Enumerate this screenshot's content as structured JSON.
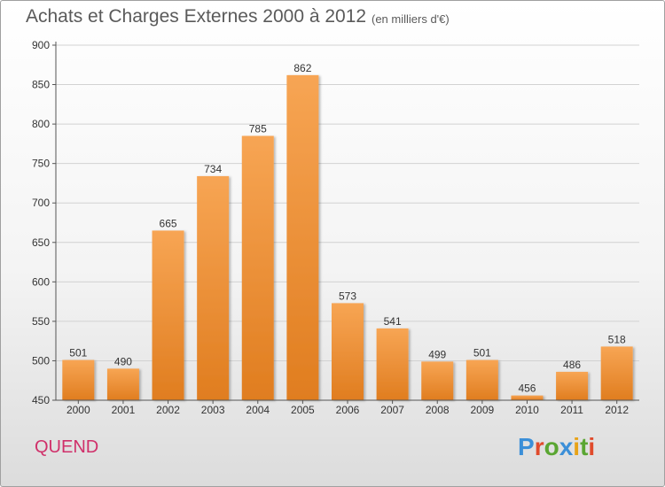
{
  "chart_data": {
    "type": "bar",
    "title": "Achats et Charges Externes 2000 à 2012",
    "subtitle": "(en milliers d'€)",
    "categories": [
      "2000",
      "2001",
      "2002",
      "2003",
      "2004",
      "2005",
      "2006",
      "2007",
      "2008",
      "2009",
      "2010",
      "2011",
      "2012"
    ],
    "values": [
      501,
      490,
      665,
      734,
      785,
      862,
      573,
      541,
      499,
      501,
      456,
      486,
      518
    ],
    "ylim": [
      450,
      900
    ],
    "yticks": [
      450,
      500,
      550,
      600,
      650,
      700,
      750,
      800,
      850,
      900
    ],
    "grid": true,
    "bar_color": "#f0953a"
  },
  "commune": "QUEND",
  "logo": {
    "text": "Proxiti",
    "letter_colors": [
      "#3b8fd8",
      "#e04b2c",
      "#5aa632",
      "#3b8fd8",
      "#e8a317",
      "#5aa632",
      "#e04b2c"
    ]
  }
}
